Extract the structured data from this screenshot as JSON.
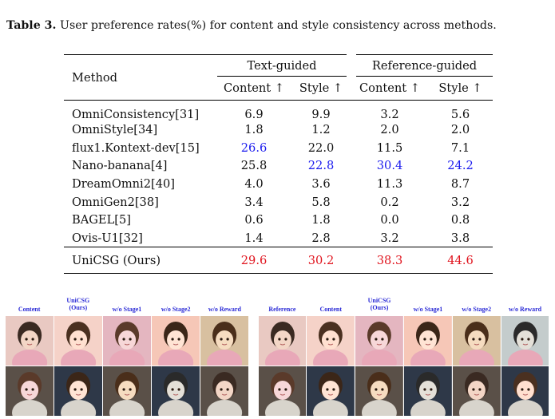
{
  "caption": {
    "label": "Table 3.",
    "text": " User preference rates(%) for content and style consistency across methods."
  },
  "table": {
    "method_header": "Method",
    "groups": [
      "Text-guided",
      "Reference-guided"
    ],
    "subheaders": [
      "Content ↑",
      "Style ↑",
      "Content ↑",
      "Style ↑"
    ],
    "rows": [
      {
        "method": "OmniConsistency[31]",
        "values": [
          "6.9",
          "9.9",
          "3.2",
          "5.6"
        ],
        "bold": [
          false,
          false,
          false,
          false
        ]
      },
      {
        "method": "OmniStyle[34]",
        "values": [
          "1.8",
          "1.2",
          "2.0",
          "2.0"
        ],
        "bold": [
          false,
          false,
          false,
          false
        ]
      },
      {
        "method": "flux1.Kontext-dev[15]",
        "values": [
          "26.6",
          "22.0",
          "11.5",
          "7.1"
        ],
        "bold": [
          true,
          false,
          false,
          false
        ]
      },
      {
        "method": "Nano-banana[4]",
        "values": [
          "25.8",
          "22.8",
          "30.4",
          "24.2"
        ],
        "bold": [
          false,
          true,
          true,
          true
        ]
      },
      {
        "method": "DreamOmni2[40]",
        "values": [
          "4.0",
          "3.6",
          "11.3",
          "8.7"
        ],
        "bold": [
          false,
          false,
          false,
          false
        ]
      },
      {
        "method": "OmniGen2[38]",
        "values": [
          "3.4",
          "5.8",
          "0.2",
          "3.2"
        ],
        "bold": [
          false,
          false,
          false,
          false
        ]
      },
      {
        "method": "BAGEL[5]",
        "values": [
          "0.6",
          "1.8",
          "0.0",
          "0.8"
        ],
        "bold": [
          false,
          false,
          false,
          false
        ]
      },
      {
        "method": "Ovis-U1[32]",
        "values": [
          "1.4",
          "2.8",
          "3.2",
          "3.8"
        ],
        "bold": [
          false,
          false,
          false,
          false
        ]
      }
    ],
    "ours": {
      "method": "UniCSG (Ours)",
      "values": [
        "29.6",
        "30.2",
        "38.3",
        "44.6"
      ]
    }
  },
  "colors": {
    "second_best": "#1a1aee",
    "best": "#e0141e",
    "figure_label": "#2b2bd6"
  },
  "figure_left": {
    "labels": [
      "Content",
      "UniCSG\n(Ours)",
      "w/o Stage1",
      "w/o Stage2",
      "w/o Reward"
    ]
  },
  "figure_right": {
    "labels": [
      "Reference",
      "Content",
      "UniCSG\n(Ours)",
      "w/o Stage1",
      "w/o Stage2",
      "w/o Reward"
    ]
  }
}
